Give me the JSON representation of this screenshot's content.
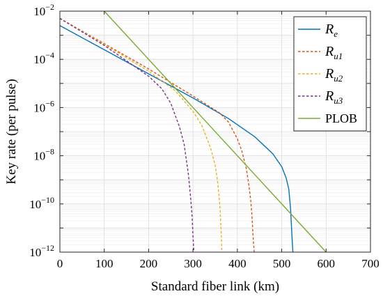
{
  "chart_data": {
    "type": "line",
    "xlabel": "Standard fiber link (km)",
    "ylabel": "Key rate (per pulse)",
    "xlim": [
      0,
      700
    ],
    "ylim": [
      1e-12,
      0.01
    ],
    "yscale": "log",
    "grid": true,
    "legend_position": "top-right",
    "xticks": [
      0,
      100,
      200,
      300,
      400,
      500,
      600,
      700
    ],
    "yticks": [
      -12,
      -10,
      -8,
      -6,
      -4,
      -2
    ],
    "ytick_base": "10",
    "series": [
      {
        "name": "R",
        "name_sub": "e",
        "color": "#0072BD",
        "style": "solid",
        "x": [
          0,
          100,
          200,
          300,
          380,
          440,
          480,
          500,
          510,
          516,
          520,
          523,
          525,
          526
        ],
        "y": [
          0.0025,
          0.00025,
          2.5e-05,
          2.5e-06,
          3.5e-07,
          6e-08,
          1.2e-08,
          3.5e-09,
          1.2e-09,
          4e-10,
          6e-11,
          5e-12,
          1.1e-12,
          1e-12
        ]
      },
      {
        "name": "R",
        "name_sub": "u1",
        "color": "#D95319",
        "style": "dashed",
        "x": [
          0,
          100,
          200,
          300,
          360,
          380,
          400,
          410,
          420,
          425,
          430,
          433,
          436,
          438
        ],
        "y": [
          0.005,
          0.00045,
          4e-05,
          3e-06,
          6e-07,
          2.5e-07,
          5e-08,
          1.6e-08,
          3e-09,
          8e-10,
          1.5e-10,
          3e-11,
          3e-12,
          1e-12
        ]
      },
      {
        "name": "R",
        "name_sub": "u2",
        "color": "#EDB120",
        "style": "dashed",
        "x": [
          0,
          100,
          200,
          260,
          300,
          320,
          340,
          350,
          355,
          360,
          362,
          364,
          365
        ],
        "y": [
          0.005,
          0.00042,
          3.2e-05,
          5e-06,
          7e-07,
          1.8e-07,
          2e-08,
          4e-09,
          1e-09,
          1.2e-10,
          3e-11,
          4e-12,
          1e-12
        ]
      },
      {
        "name": "R",
        "name_sub": "u3",
        "color": "#7E2F8E",
        "style": "dashed",
        "x": [
          0,
          100,
          200,
          230,
          250,
          270,
          280,
          290,
          295,
          298,
          300,
          302
        ],
        "y": [
          0.005,
          0.00038,
          2e-05,
          6e-06,
          1.5e-06,
          1.5e-07,
          3e-08,
          1.5e-09,
          1.5e-10,
          3e-11,
          5e-12,
          1e-12
        ]
      },
      {
        "name": "PLOB",
        "name_sub": "",
        "color": "#77AC30",
        "style": "solid",
        "x": [
          100,
          600
        ],
        "y": [
          0.01,
          1e-12
        ]
      }
    ]
  }
}
